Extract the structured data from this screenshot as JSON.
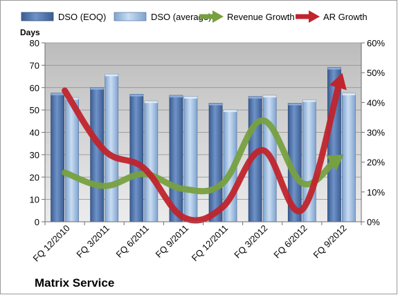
{
  "chart_data": {
    "type": "bar",
    "company": "Matrix Service",
    "categories": [
      "FQ 12/2010",
      "FQ 3/2011",
      "FQ 6/2011",
      "FQ 9/2011",
      "FQ 12/2011",
      "FQ 3/2012",
      "FQ 6/2012",
      "FQ 9/2012"
    ],
    "y_left": {
      "label": "Days",
      "ylim": [
        0,
        80
      ],
      "ticks": [
        "0",
        "10",
        "20",
        "30",
        "40",
        "50",
        "60",
        "70",
        "80"
      ]
    },
    "y_right": {
      "ylim": [
        0,
        60
      ],
      "ticks": [
        "0%",
        "10%",
        "20%",
        "30%",
        "40%",
        "50%",
        "60%"
      ]
    },
    "bar_series": [
      {
        "name": "DSO (EOQ)",
        "color": "#4a6ea8",
        "values": [
          57.5,
          60,
          57,
          56.5,
          53,
          56,
          53,
          69
        ]
      },
      {
        "name": "DSO (average)",
        "color": "#a8c4e4",
        "values": [
          55.5,
          66,
          54,
          56,
          50,
          56.5,
          54.5,
          57.5
        ]
      }
    ],
    "line_series": [
      {
        "name": "Revenue Growth",
        "color": "#77a040",
        "unit": "%",
        "values": [
          16.5,
          12,
          16,
          11,
          13,
          34,
          13,
          22
        ]
      },
      {
        "name": "AR Growth",
        "color": "#c0242c",
        "unit": "%",
        "values": [
          44,
          24,
          18,
          1.5,
          5,
          24,
          4,
          49
        ]
      }
    ],
    "grid": true,
    "legend_position": "top"
  }
}
